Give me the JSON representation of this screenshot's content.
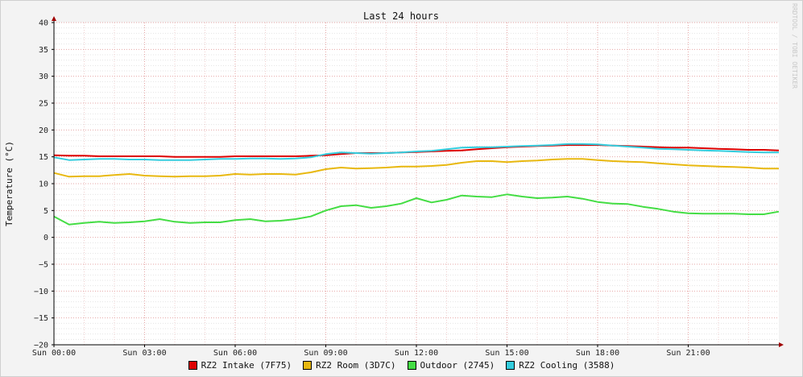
{
  "chart_data": {
    "type": "line",
    "title": "Last 24 hours",
    "ylabel": "Temperature (°C)",
    "xlabel": "",
    "watermark": "RRDTOOL / TOBI OETIKER",
    "ylim": [
      -20,
      40
    ],
    "yticks": [
      40,
      35,
      30,
      25,
      20,
      15,
      10,
      5,
      0,
      -5,
      -10,
      -15,
      -20
    ],
    "xlim": [
      0,
      24
    ],
    "xticks": [
      {
        "hour": 0,
        "label": "Sun 00:00"
      },
      {
        "hour": 3,
        "label": "Sun 03:00"
      },
      {
        "hour": 6,
        "label": "Sun 06:00"
      },
      {
        "hour": 9,
        "label": "Sun 09:00"
      },
      {
        "hour": 12,
        "label": "Sun 12:00"
      },
      {
        "hour": 15,
        "label": "Sun 15:00"
      },
      {
        "hour": 18,
        "label": "Sun 18:00"
      },
      {
        "hour": 21,
        "label": "Sun 21:00"
      }
    ],
    "grid": true,
    "legend_position": "bottom",
    "x": [
      0,
      0.5,
      1,
      1.5,
      2,
      2.5,
      3,
      3.5,
      4,
      4.5,
      5,
      5.5,
      6,
      6.5,
      7,
      7.5,
      8,
      8.5,
      9,
      9.5,
      10,
      10.5,
      11,
      11.5,
      12,
      12.5,
      13,
      13.5,
      14,
      14.5,
      15,
      15.5,
      16,
      16.5,
      17,
      17.5,
      18,
      18.5,
      19,
      19.5,
      20,
      20.5,
      21,
      21.5,
      22,
      22.5,
      23,
      23.5,
      24
    ],
    "series": [
      {
        "name": "RZ2 Intake (7F75)",
        "color": "#dd0000",
        "values": [
          15.3,
          15.2,
          15.2,
          15.1,
          15.1,
          15.1,
          15.1,
          15.1,
          15.0,
          15.0,
          15.0,
          15.0,
          15.1,
          15.1,
          15.1,
          15.1,
          15.1,
          15.2,
          15.3,
          15.5,
          15.7,
          15.7,
          15.7,
          15.8,
          15.9,
          16.0,
          16.1,
          16.2,
          16.4,
          16.6,
          16.8,
          16.9,
          17.0,
          17.1,
          17.2,
          17.2,
          17.2,
          17.1,
          17.0,
          16.9,
          16.8,
          16.7,
          16.7,
          16.6,
          16.5,
          16.4,
          16.3,
          16.3,
          16.2
        ]
      },
      {
        "name": "RZ2 Room (3D7C)",
        "color": "#e8b810",
        "values": [
          12.0,
          11.3,
          11.4,
          11.4,
          11.6,
          11.8,
          11.5,
          11.4,
          11.3,
          11.4,
          11.4,
          11.5,
          11.8,
          11.7,
          11.8,
          11.8,
          11.7,
          12.1,
          12.7,
          13.0,
          12.8,
          12.9,
          13.0,
          13.2,
          13.2,
          13.3,
          13.5,
          13.9,
          14.2,
          14.2,
          14.0,
          14.2,
          14.3,
          14.5,
          14.6,
          14.6,
          14.4,
          14.2,
          14.1,
          14.0,
          13.8,
          13.6,
          13.4,
          13.3,
          13.2,
          13.1,
          13.0,
          12.8,
          12.8
        ]
      },
      {
        "name": "Outdoor (2745)",
        "color": "#44dd44",
        "values": [
          3.9,
          2.4,
          2.7,
          2.9,
          2.7,
          2.8,
          3.0,
          3.4,
          2.9,
          2.7,
          2.8,
          2.8,
          3.2,
          3.4,
          3.0,
          3.1,
          3.4,
          3.9,
          5.0,
          5.8,
          6.0,
          5.5,
          5.8,
          6.3,
          7.3,
          6.5,
          7.0,
          7.8,
          7.6,
          7.5,
          8.0,
          7.6,
          7.3,
          7.4,
          7.6,
          7.2,
          6.6,
          6.3,
          6.2,
          5.7,
          5.3,
          4.8,
          4.5,
          4.4,
          4.4,
          4.4,
          4.3,
          4.3,
          4.8
        ]
      },
      {
        "name": "RZ2 Cooling (3588)",
        "color": "#33ccdd",
        "values": [
          14.9,
          14.4,
          14.5,
          14.6,
          14.6,
          14.5,
          14.5,
          14.4,
          14.4,
          14.4,
          14.5,
          14.6,
          14.6,
          14.7,
          14.7,
          14.6,
          14.7,
          14.9,
          15.5,
          15.8,
          15.7,
          15.6,
          15.7,
          15.8,
          16.0,
          16.1,
          16.4,
          16.7,
          16.8,
          16.8,
          16.9,
          17.0,
          17.1,
          17.2,
          17.4,
          17.4,
          17.3,
          17.1,
          16.9,
          16.7,
          16.5,
          16.4,
          16.3,
          16.2,
          16.1,
          16.0,
          15.9,
          15.8,
          15.8
        ]
      }
    ]
  }
}
